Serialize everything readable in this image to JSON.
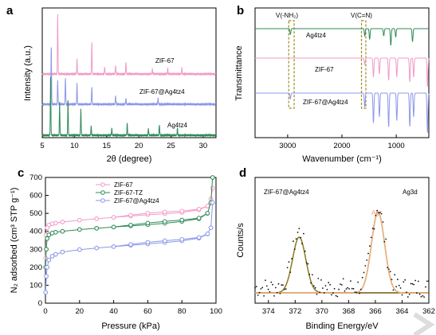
{
  "chart_data": [
    {
      "panel": "a",
      "type": "line",
      "xlabel": "2θ (degree)",
      "ylabel": "Intensity (a.u.)",
      "xlim": [
        5,
        32
      ],
      "xticks": [
        "5",
        "10",
        "15",
        "20",
        "25",
        "30"
      ],
      "series": [
        {
          "name": "ZIF-67",
          "color": "#f29bc8",
          "offset": 2,
          "peaks": [
            [
              7.4,
              1.0
            ],
            [
              10.4,
              0.25
            ],
            [
              12.7,
              0.55
            ],
            [
              14.7,
              0.12
            ],
            [
              16.4,
              0.15
            ],
            [
              18.0,
              0.2
            ],
            [
              22.1,
              0.08
            ],
            [
              24.5,
              0.1
            ],
            [
              26.7,
              0.1
            ]
          ]
        },
        {
          "name": "ZIF-67@Ag4tz4",
          "color": "#8c97e8",
          "offset": 1,
          "peaks": [
            [
              6.4,
              1.0
            ],
            [
              7.4,
              0.4
            ],
            [
              8.6,
              0.45
            ],
            [
              10.4,
              0.35
            ],
            [
              12.7,
              0.3
            ],
            [
              16.4,
              0.15
            ],
            [
              18.0,
              0.1
            ],
            [
              23.0,
              0.1
            ]
          ]
        },
        {
          "name": "Ag4tz4",
          "color": "#2e8b57",
          "offset": 0,
          "peaks": [
            [
              6.3,
              1.0
            ],
            [
              7.7,
              0.55
            ],
            [
              9.0,
              0.6
            ],
            [
              11.0,
              0.45
            ],
            [
              12.6,
              0.15
            ],
            [
              15.8,
              0.12
            ],
            [
              18.2,
              0.2
            ],
            [
              21.5,
              0.12
            ],
            [
              23.2,
              0.18
            ],
            [
              26.0,
              0.12
            ]
          ]
        }
      ]
    },
    {
      "panel": "b",
      "type": "line",
      "xlabel": "Wavenumber (cm⁻¹)",
      "ylabel": "Transmittance",
      "xlim": [
        3600,
        400
      ],
      "xticks": [
        "3000",
        "2000",
        "1000"
      ],
      "annotations": [
        "V(-NH₂)",
        "V(C=N)"
      ],
      "series": [
        {
          "name": "Ag4tz4",
          "color": "#2e8b57",
          "offset": 2,
          "bands": [
            [
              2950,
              0.25
            ],
            [
              1580,
              0.3
            ],
            [
              1490,
              0.45
            ],
            [
              1230,
              0.3
            ],
            [
              1100,
              0.7
            ],
            [
              1010,
              0.35
            ],
            [
              700,
              0.55
            ]
          ]
        },
        {
          "name": "ZIF-67",
          "color": "#f29bc8",
          "offset": 1,
          "bands": [
            [
              1580,
              0.2
            ],
            [
              1420,
              0.6
            ],
            [
              1310,
              0.5
            ],
            [
              1140,
              0.7
            ],
            [
              990,
              0.6
            ],
            [
              750,
              0.75
            ],
            [
              680,
              0.6
            ],
            [
              425,
              0.9
            ]
          ]
        },
        {
          "name": "ZIF-67@Ag4tz4",
          "color": "#8c97e8",
          "offset": 0,
          "bands": [
            [
              2950,
              0.15
            ],
            [
              1580,
              0.35
            ],
            [
              1420,
              0.75
            ],
            [
              1310,
              0.6
            ],
            [
              1140,
              0.85
            ],
            [
              990,
              0.7
            ],
            [
              750,
              0.85
            ],
            [
              680,
              0.6
            ],
            [
              425,
              1.0
            ]
          ]
        }
      ]
    },
    {
      "panel": "c",
      "type": "line",
      "xlabel": "Pressure (kPa)",
      "ylabel": "N₂ adsorbed (cm³ STP g⁻¹)",
      "xlim": [
        0,
        100
      ],
      "ylim": [
        0,
        700
      ],
      "xticks": [
        "0",
        "20",
        "40",
        "60",
        "80",
        "100"
      ],
      "yticks": [
        "0",
        "100",
        "200",
        "300",
        "400",
        "500",
        "600",
        "700"
      ],
      "series": [
        {
          "name": "ZIF-67",
          "color": "#f29bc8",
          "x": [
            0.1,
            0.5,
            1,
            2,
            4,
            6,
            10,
            20,
            30,
            40,
            50,
            60,
            70,
            80,
            90,
            95,
            97,
            98
          ],
          "y": [
            250,
            380,
            420,
            435,
            442,
            446,
            452,
            462,
            470,
            478,
            485,
            492,
            498,
            505,
            520,
            540,
            580,
            640
          ]
        },
        {
          "name": "ZIF-67-TZ",
          "color": "#2e8b57",
          "x": [
            0.1,
            0.5,
            1,
            2,
            4,
            6,
            10,
            20,
            30,
            40,
            50,
            60,
            70,
            80,
            90,
            95,
            97,
            98
          ],
          "y": [
            200,
            300,
            360,
            380,
            390,
            395,
            400,
            410,
            417,
            424,
            430,
            437,
            445,
            455,
            470,
            500,
            560,
            700
          ]
        },
        {
          "name": "ZIF-67@Ag4tz4",
          "color": "#8c97e8",
          "x": [
            0.1,
            0.5,
            1,
            2,
            4,
            6,
            10,
            20,
            30,
            40,
            50,
            60,
            70,
            80,
            90,
            95,
            97,
            98
          ],
          "y": [
            60,
            150,
            200,
            240,
            262,
            272,
            285,
            298,
            307,
            315,
            322,
            330,
            338,
            347,
            362,
            385,
            420,
            560
          ]
        }
      ]
    },
    {
      "panel": "d",
      "type": "scatter",
      "xlabel": "Binding Energy/eV",
      "ylabel": "Counts/s",
      "xlim": [
        375,
        362
      ],
      "xticks": [
        "374",
        "372",
        "370",
        "368",
        "366",
        "364",
        "362"
      ],
      "sample": "ZIF-67@Ag4tz4",
      "region": "Ag3d",
      "peak_label": "Ag⁺",
      "peaks": [
        [
          371.7,
          1.0,
          0.7
        ],
        [
          365.8,
          1.45,
          0.7
        ]
      ]
    }
  ]
}
